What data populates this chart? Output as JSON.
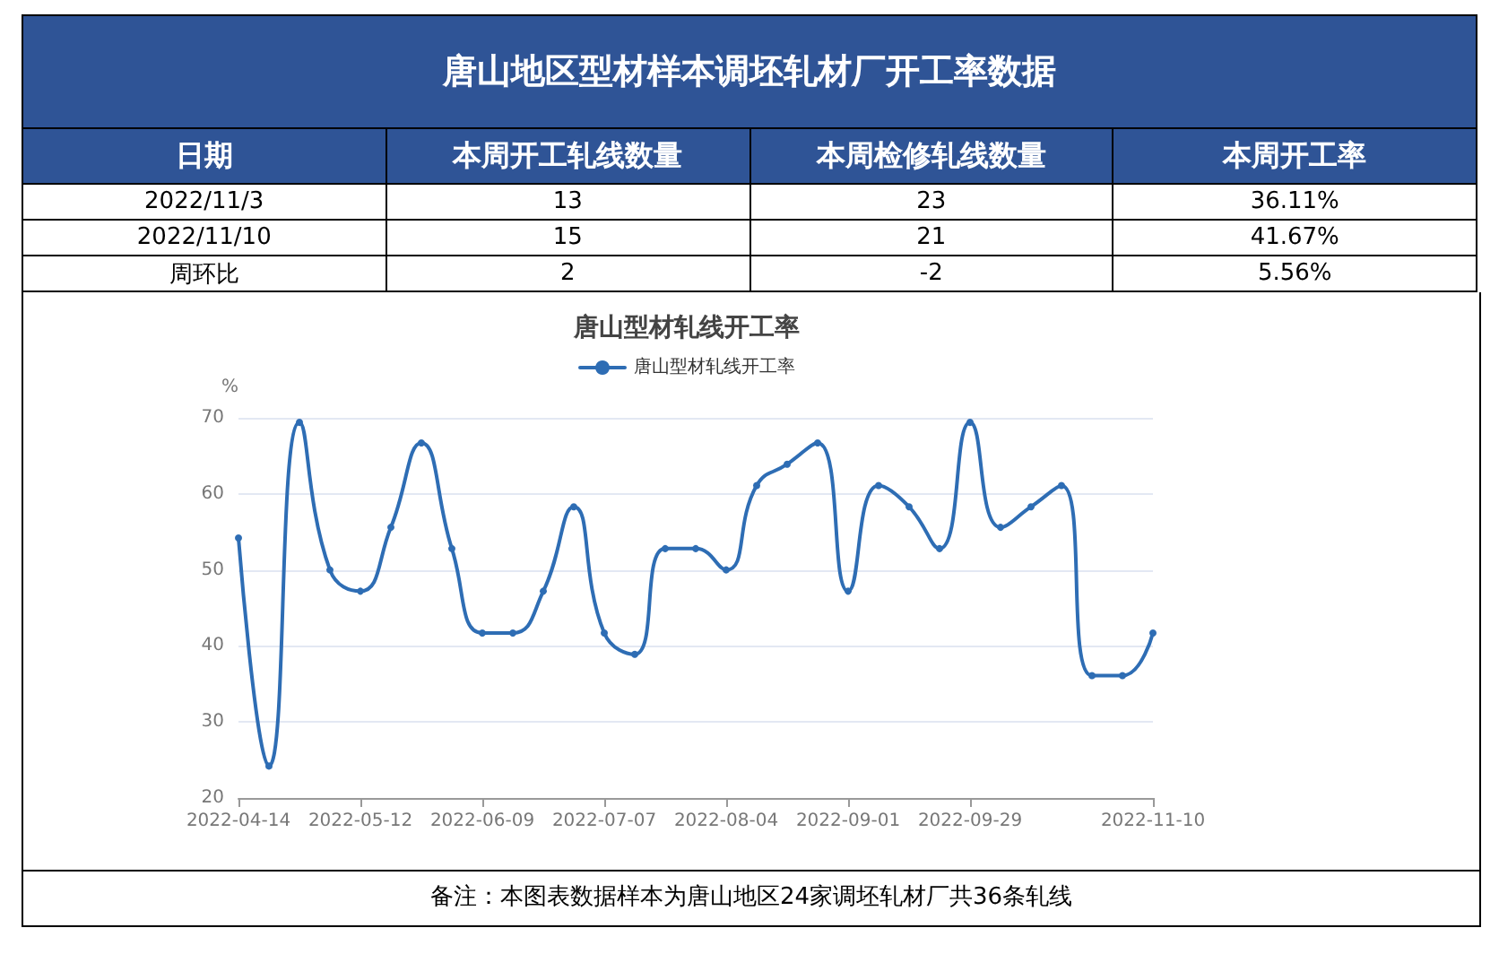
{
  "chart_data": [
    {
      "type": "other",
      "title": "唐山地区型材样本调坯轧材厂开工率数据",
      "color": "#2f5496",
      "categories": [
        "日期",
        "本周开工轧线数量",
        "本周检修轧线数量",
        "本周开工率"
      ],
      "cell_labels": [
        [
          "2022/11/3",
          "13",
          "23",
          "36.11%"
        ],
        [
          "2022/11/10",
          "15",
          "21",
          "41.67%"
        ],
        [
          "周环比",
          "2",
          "-2",
          "5.56%"
        ]
      ]
    },
    {
      "type": "line",
      "title": "唐山型材轧线开工率",
      "ylabel": "%",
      "annotations": [
        "备注：本图表数据样本为唐山地区24家调坯轧材厂共36条轧线"
      ],
      "x": [
        "2022-04-14",
        "2022-04-21",
        "2022-04-28",
        "2022-05-05",
        "2022-05-12",
        "2022-05-19",
        "2022-05-26",
        "2022-06-02",
        "2022-06-09",
        "2022-06-16",
        "2022-06-23",
        "2022-06-30",
        "2022-07-07",
        "2022-07-14",
        "2022-07-21",
        "2022-07-28",
        "2022-08-04",
        "2022-08-11",
        "2022-08-18",
        "2022-08-25",
        "2022-09-01",
        "2022-09-08",
        "2022-09-15",
        "2022-09-22",
        "2022-09-29",
        "2022-10-06",
        "2022-10-13",
        "2022-10-20",
        "2022-10-27",
        "2022-11-03",
        "2022-11-10"
      ],
      "series": [
        {
          "name": "唐山型材轧线开工率",
          "color": "#2e6db4",
          "values": [
            54.2,
            24.2,
            69.4,
            50,
            47.2,
            55.6,
            66.7,
            52.8,
            41.7,
            41.7,
            47.2,
            58.3,
            41.7,
            38.9,
            52.8,
            52.8,
            50,
            61.1,
            63.9,
            66.7,
            47.2,
            61.1,
            58.3,
            52.8,
            69.4,
            55.6,
            58.3,
            61.1,
            36.1,
            36.1,
            41.7
          ]
        }
      ],
      "xlim": [
        "2022-04-14",
        "2022-11-10"
      ],
      "xticks": [
        "2022-04-14",
        "2022-05-12",
        "2022-06-09",
        "2022-07-07",
        "2022-08-04",
        "2022-09-01",
        "2022-09-29",
        "2022-11-10"
      ],
      "ylim": [
        20,
        70
      ],
      "yticks": [
        20,
        30,
        40,
        50,
        60,
        70
      ],
      "grid": "y",
      "legend": "top",
      "marker": "circle",
      "line_style": "solid"
    }
  ]
}
